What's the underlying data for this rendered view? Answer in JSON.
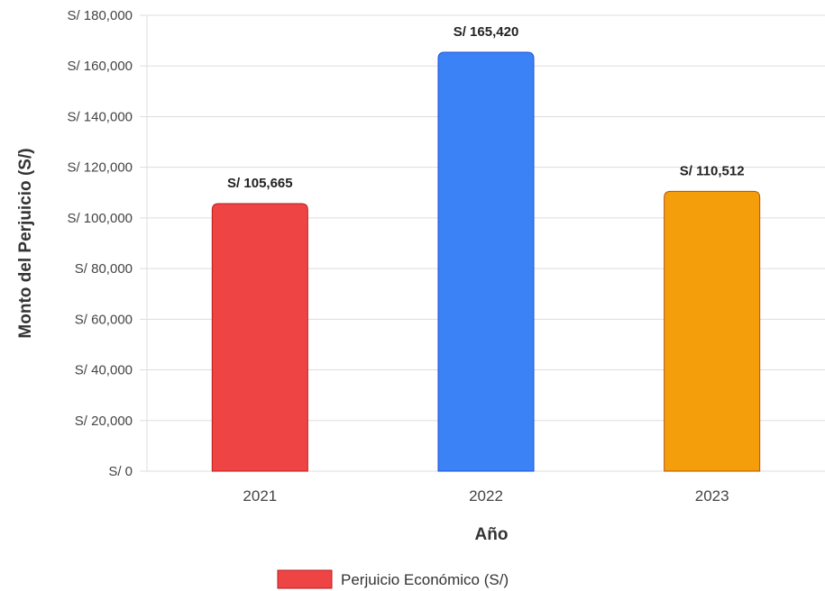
{
  "chart_data": {
    "type": "bar",
    "categories": [
      "2021",
      "2022",
      "2023"
    ],
    "series": [
      {
        "name": "Perjuicio Económico (S/)",
        "values": [
          105665,
          165420,
          110512
        ],
        "colors": [
          "#ef4444",
          "#3b82f6",
          "#f59e0b"
        ],
        "border_colors": [
          "#b91c1c",
          "#1d4ed8",
          "#b45309"
        ]
      }
    ],
    "data_labels": [
      "S/ 105,665",
      "S/ 165,420",
      "S/ 110,512"
    ],
    "y_ticks": [
      "S/ 0",
      "S/ 20,000",
      "S/ 40,000",
      "S/ 60,000",
      "S/ 80,000",
      "S/ 100,000",
      "S/ 120,000",
      "S/ 140,000",
      "S/ 160,000",
      "S/ 180,000"
    ],
    "ylim": [
      0,
      180000
    ],
    "ytick_step": 20000,
    "xlabel": "Año",
    "ylabel": "Monto del Perjuicio (S/)",
    "grid": true,
    "legend": {
      "position": "bottom",
      "label": "Perjuicio Económico (S/)",
      "swatch_color": "#ef4444"
    }
  }
}
